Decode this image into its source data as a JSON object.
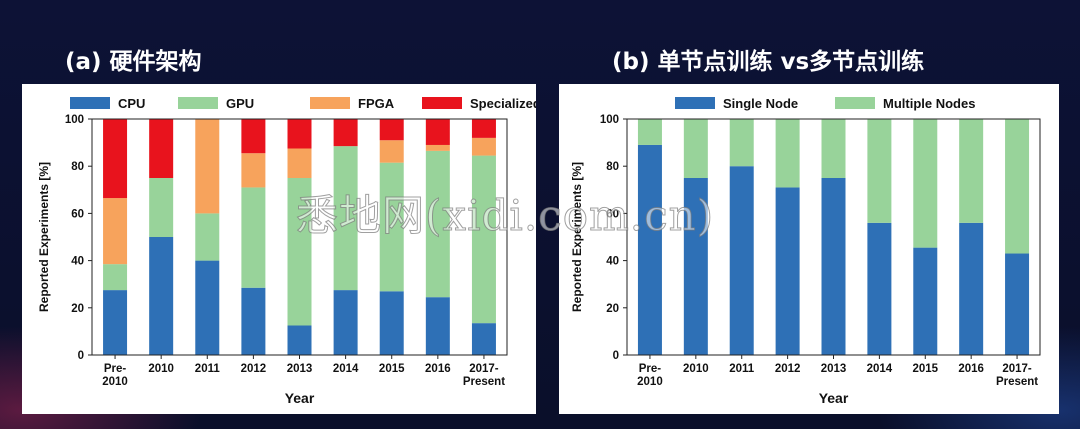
{
  "titles": {
    "a": "(a) 硬件架构",
    "b": "(b) 单节点训练 vs多节点训练"
  },
  "watermark": "悉地网(xidi.com.cn)",
  "colors": {
    "CPU": "#2e70b6",
    "GPU": "#98d39a",
    "FPGA": "#f7a35c",
    "Specialized": "#e8131d",
    "Single Node": "#2e70b6",
    "Multiple Nodes": "#98d39a"
  },
  "chart_data": [
    {
      "type": "bar",
      "stacked": true,
      "categories": [
        [
          "Pre-",
          "2010"
        ],
        [
          "2010"
        ],
        [
          "2011"
        ],
        [
          "2012"
        ],
        [
          "2013"
        ],
        [
          "2014"
        ],
        [
          "2015"
        ],
        [
          "2016"
        ],
        [
          "2017-",
          "Present"
        ]
      ],
      "series": [
        {
          "name": "CPU",
          "values": [
            27.5,
            50,
            40,
            28.5,
            12.5,
            27.5,
            27,
            24.5,
            13.5
          ]
        },
        {
          "name": "GPU",
          "values": [
            11,
            25,
            20,
            42.5,
            62.5,
            61,
            54.5,
            62,
            71
          ]
        },
        {
          "name": "FPGA",
          "values": [
            28,
            0,
            40,
            14.5,
            12.5,
            0,
            9.5,
            2.5,
            7.5
          ]
        },
        {
          "name": "Specialized",
          "values": [
            33.5,
            25,
            0,
            14.5,
            12.5,
            11.5,
            9,
            11,
            8
          ]
        }
      ],
      "xlabel": "Year",
      "ylabel": "Reported Experiments [%]",
      "ylim": [
        0,
        100
      ],
      "yticks": [
        0,
        20,
        40,
        60,
        80,
        100
      ],
      "legend": "top"
    },
    {
      "type": "bar",
      "stacked": true,
      "categories": [
        [
          "Pre-",
          "2010"
        ],
        [
          "2010"
        ],
        [
          "2011"
        ],
        [
          "2012"
        ],
        [
          "2013"
        ],
        [
          "2014"
        ],
        [
          "2015"
        ],
        [
          "2016"
        ],
        [
          "2017-",
          "Present"
        ]
      ],
      "series": [
        {
          "name": "Single Node",
          "values": [
            89,
            75,
            80,
            71,
            75,
            56,
            45.5,
            56,
            43
          ]
        },
        {
          "name": "Multiple Nodes",
          "values": [
            11,
            25,
            20,
            29,
            25,
            44,
            54.5,
            44,
            57
          ]
        }
      ],
      "xlabel": "Year",
      "ylabel": "Reported Experiments [%]",
      "ylim": [
        0,
        100
      ],
      "yticks": [
        0,
        20,
        40,
        60,
        80,
        100
      ],
      "legend": "top"
    }
  ]
}
